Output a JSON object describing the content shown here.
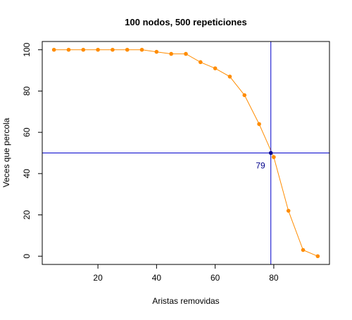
{
  "chart_data": {
    "type": "line",
    "title": "100 nodos, 500 repeticiones",
    "xlabel": "Aristas removidas",
    "ylabel": "Veces que percola",
    "xlim": [
      1,
      99
    ],
    "ylim": [
      -4,
      104
    ],
    "x_ticks": [
      20,
      40,
      60,
      80
    ],
    "y_ticks": [
      0,
      20,
      40,
      60,
      80,
      100
    ],
    "grid": false,
    "series": [
      {
        "color": "#FF8C00",
        "x": [
          5,
          10,
          15,
          20,
          25,
          30,
          35,
          40,
          45,
          50,
          55,
          60,
          65,
          70,
          75,
          80,
          85,
          90,
          95
        ],
        "y": [
          100,
          100,
          100,
          100,
          100,
          100,
          100,
          99,
          98,
          98,
          94,
          91,
          87,
          78,
          64,
          48,
          22,
          3,
          0
        ]
      }
    ],
    "reference_lines": {
      "vertical_x": 79,
      "horizontal_y": 50,
      "color": "#0000CD"
    },
    "intersection_point": {
      "x": 79,
      "y": 50,
      "color": "#00008B"
    },
    "annotation": {
      "text": "79",
      "x": 79,
      "y": 50,
      "color": "#00008B"
    }
  }
}
